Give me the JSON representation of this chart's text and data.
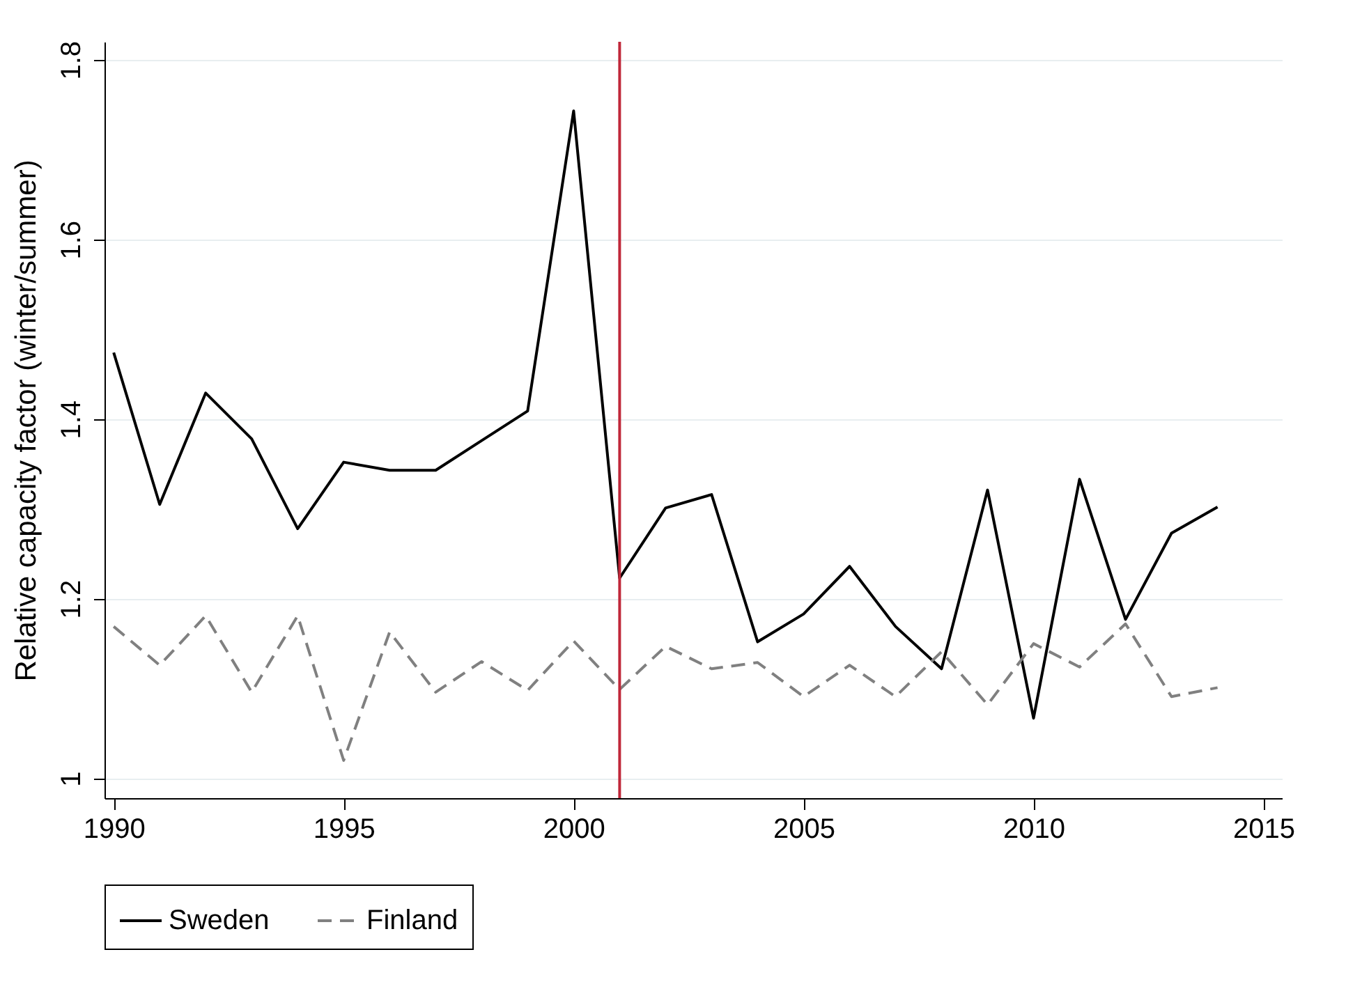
{
  "chart_data": {
    "type": "line",
    "ylabel": "Relative capacity factor (winter/summer)",
    "x": [
      1990,
      1991,
      1992,
      1993,
      1994,
      1995,
      1996,
      1997,
      1998,
      1999,
      2000,
      2001,
      2002,
      2003,
      2004,
      2005,
      2006,
      2007,
      2008,
      2009,
      2010,
      2011,
      2012,
      2013,
      2014
    ],
    "series": [
      {
        "name": "Sweden",
        "color": "#000000",
        "line_style": "solid",
        "values": [
          1.474,
          1.305,
          1.429,
          1.378,
          1.278,
          1.352,
          1.343,
          1.343,
          1.376,
          1.409,
          1.743,
          1.223,
          1.301,
          1.316,
          1.152,
          1.183,
          1.236,
          1.169,
          1.122,
          1.321,
          1.067,
          1.333,
          1.177,
          1.273,
          1.302
        ]
      },
      {
        "name": "Finland",
        "color": "#808080",
        "line_style": "dashed",
        "values": [
          1.169,
          1.126,
          1.181,
          1.096,
          1.181,
          1.02,
          1.163,
          1.096,
          1.13,
          1.098,
          1.153,
          1.099,
          1.147,
          1.122,
          1.129,
          1.091,
          1.126,
          1.091,
          1.141,
          1.082,
          1.15,
          1.124,
          1.172,
          1.091,
          1.101
        ]
      }
    ],
    "xlim": [
      1989.8,
      2015.4
    ],
    "xticks": [
      1990,
      1995,
      2000,
      2005,
      2010,
      2015
    ],
    "ylim": [
      0.978,
      1.82
    ],
    "yticks": [
      1,
      1.2,
      1.4,
      1.6,
      1.8
    ],
    "ref_lines": [
      {
        "axis": "x",
        "value": 2001,
        "color": "#c0283a"
      }
    ],
    "grid": "y",
    "legend": "bottom"
  }
}
